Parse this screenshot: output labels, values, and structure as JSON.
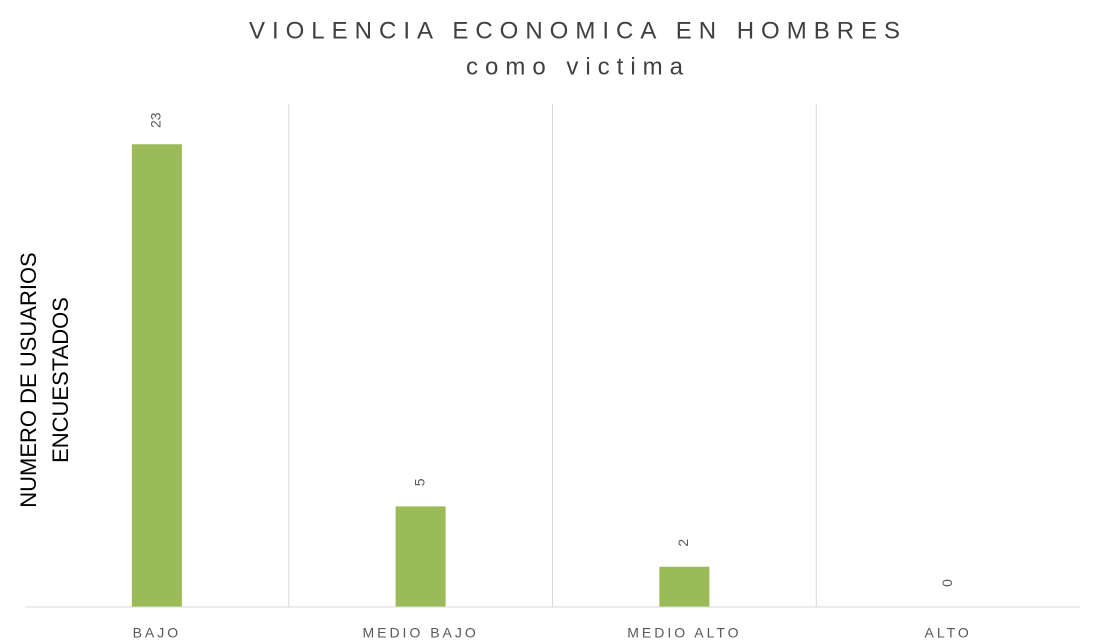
{
  "chart_data": {
    "type": "bar",
    "title": "VIOLENCIA ECONOMICA EN HOMBRES",
    "subtitle": "como victima",
    "ylabel": [
      "NUMERO DE USUARIOS",
      "ENCUESTADOS"
    ],
    "categories": [
      "BAJO",
      "MEDIO BAJO",
      "MEDIO ALTO",
      "ALTO"
    ],
    "values": [
      23,
      5,
      2,
      0
    ],
    "color": "#9bbb59",
    "ylim": [
      0,
      25
    ]
  }
}
